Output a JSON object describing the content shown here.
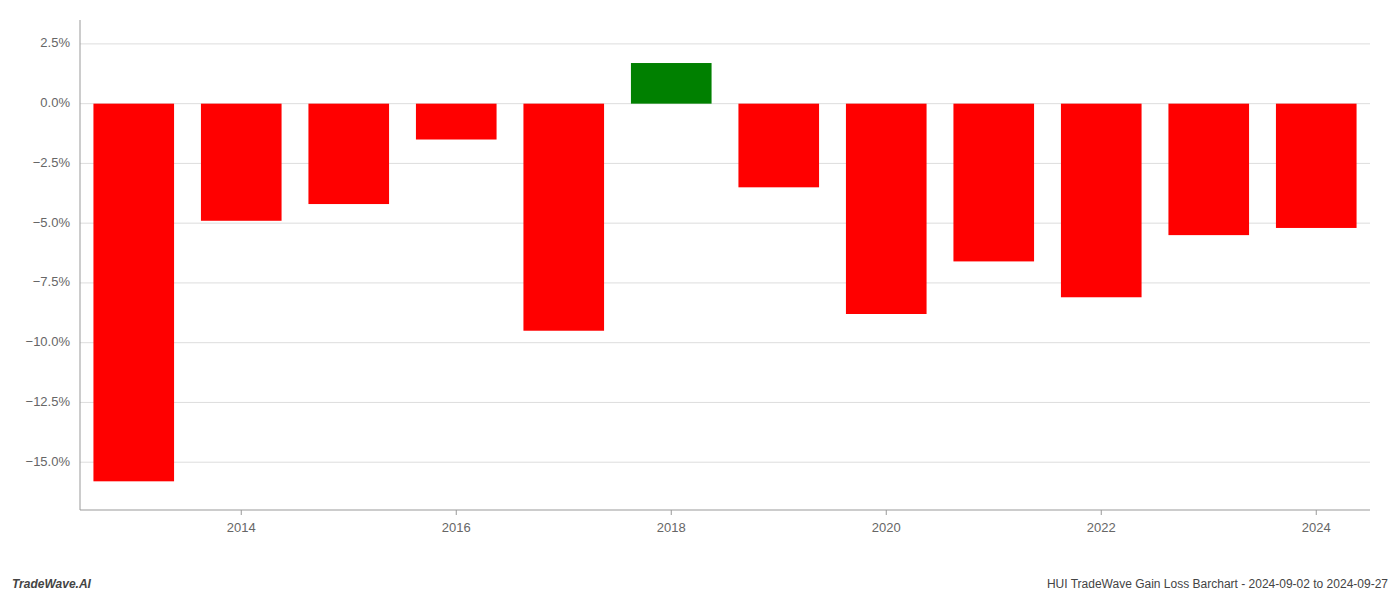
{
  "chart_data": {
    "type": "bar",
    "title": "HUI TradeWave Gain Loss Barchart - 2024-09-02 to 2024-09-27",
    "annotations": [
      "TradeWave.AI"
    ],
    "categories": [
      null,
      "2014",
      null,
      "2016",
      null,
      "2018",
      null,
      "2020",
      null,
      "2022",
      null,
      "2024"
    ],
    "values": [
      -15.8,
      -4.9,
      -4.2,
      -1.5,
      -9.5,
      1.7,
      -3.5,
      -8.8,
      -6.6,
      -8.1,
      -5.5,
      -5.2
    ],
    "colors": [
      "#ff0000",
      "#ff0000",
      "#ff0000",
      "#ff0000",
      "#ff0000",
      "#008000",
      "#ff0000",
      "#ff0000",
      "#ff0000",
      "#ff0000",
      "#ff0000",
      "#ff0000"
    ],
    "ylim": [
      -17.0,
      3.5
    ],
    "yticks": [
      {
        "value": 2.5,
        "label": "2.5%"
      },
      {
        "value": 0.0,
        "label": "0.0%"
      },
      {
        "value": -2.5,
        "label": "−2.5%"
      },
      {
        "value": -5.0,
        "label": "−5.0%"
      },
      {
        "value": -7.5,
        "label": "−7.5%"
      },
      {
        "value": -10.0,
        "label": "−10.0%"
      },
      {
        "value": -12.5,
        "label": "−12.5%"
      },
      {
        "value": -15.0,
        "label": "−15.0%"
      }
    ],
    "grid": true
  }
}
